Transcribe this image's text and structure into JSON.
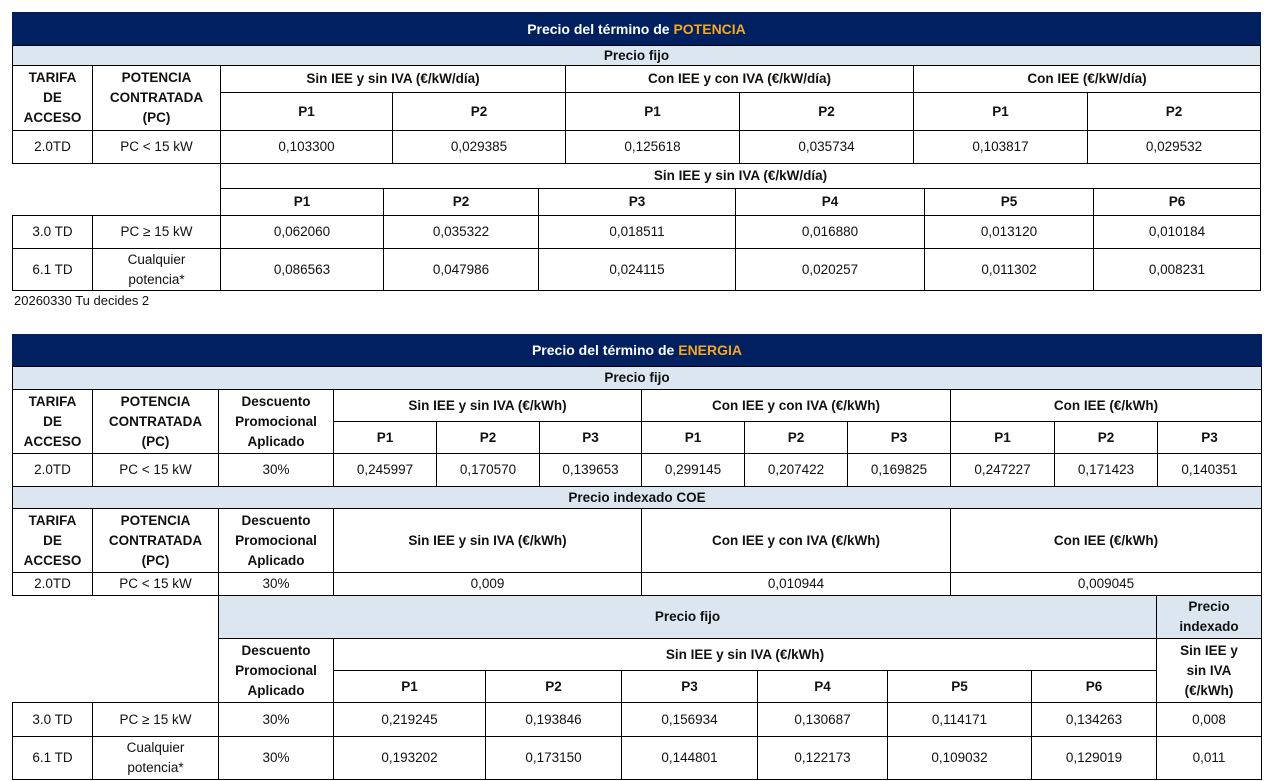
{
  "potencia": {
    "title_prefix": "Precio del término de ",
    "title_highlight": "POTENCIA",
    "band": "Precio fijo",
    "headers": {
      "tarifa": "TARIFA\nDE\nACCESO",
      "potencia": "POTENCIA\nCONTRATADA\n(PC)"
    },
    "groups": [
      "Sin IEE y sin IVA (€/kW/día)",
      "Con IEE y con IVA (€/kW/día)",
      "Con IEE (€/kW/día)"
    ],
    "periods": [
      "P1",
      "P2",
      "P1",
      "P2",
      "P1",
      "P2"
    ],
    "row_2td": {
      "tarifa": "2.0TD",
      "pc": "PC < 15 kW",
      "values": [
        "0,103300",
        "0,029385",
        "0,125618",
        "0,035734",
        "0,103817",
        "0,029532"
      ]
    },
    "section2": {
      "group": "Sin IEE y sin IVA (€/kW/día)",
      "periods": [
        "P1",
        "P2",
        "P3",
        "P4",
        "P5",
        "P6"
      ],
      "rows": [
        {
          "tarifa": "3.0 TD",
          "pc": "PC ≥ 15 kW",
          "values": [
            "0,062060",
            "0,035322",
            "0,018511",
            "0,016880",
            "0,013120",
            "0,010184"
          ]
        },
        {
          "tarifa": "6.1 TD",
          "pc": "Cualquier\npotencia*",
          "values": [
            "0,086563",
            "0,047986",
            "0,024115",
            "0,020257",
            "0,011302",
            "0,008231"
          ]
        }
      ]
    }
  },
  "footnote": "20260330 Tu decides 2",
  "energia": {
    "title_prefix": "Precio del término de ",
    "title_highlight": "ENERGIA",
    "band_fijo": "Precio fijo",
    "headers": {
      "tarifa": "TARIFA\nDE\nACCESO",
      "potencia": "POTENCIA\nCONTRATADA\n(PC)",
      "descuento": "Descuento\nPromocional\nAplicado"
    },
    "groups": [
      "Sin IEE y sin IVA (€/kWh)",
      "Con IEE y con IVA (€/kWh)",
      "Con IEE (€/kWh)"
    ],
    "periods": [
      "P1",
      "P2",
      "P3",
      "P1",
      "P2",
      "P3",
      "P1",
      "P2",
      "P3"
    ],
    "row_2td": {
      "tarifa": "2.0TD",
      "pc": "PC < 15 kW",
      "descuento": "30%",
      "values": [
        "0,245997",
        "0,170570",
        "0,139653",
        "0,299145",
        "0,207422",
        "0,169825",
        "0,247227",
        "0,171423",
        "0,140351"
      ]
    },
    "band_indexado": "Precio indexado COE",
    "indexado_row": {
      "tarifa": "2.0TD",
      "pc": "PC < 15 kW",
      "descuento": "30%",
      "values": [
        "0,009",
        "0,010944",
        "0,009045"
      ]
    },
    "section3": {
      "band_fijo": "Precio fijo",
      "band_indexado": "Precio\nindexado",
      "descuento": "Descuento\nPromocional\nAplicado",
      "group": "Sin IEE y sin IVA (€/kWh)",
      "indexado_group": "Sin IEE y\nsin IVA\n(€/kWh)",
      "periods": [
        "P1",
        "P2",
        "P3",
        "P4",
        "P5",
        "P6"
      ],
      "rows": [
        {
          "tarifa": "3.0 TD",
          "pc": "PC ≥ 15 kW",
          "descuento": "30%",
          "values": [
            "0,219245",
            "0,193846",
            "0,156934",
            "0,130687",
            "0,114171",
            "0,134263"
          ],
          "indexado": "0,008"
        },
        {
          "tarifa": "6.1 TD",
          "pc": "Cualquier\npotencia*",
          "descuento": "30%",
          "values": [
            "0,193202",
            "0,173150",
            "0,144801",
            "0,122173",
            "0,109032",
            "0,129019"
          ],
          "indexado": "0,011"
        }
      ]
    }
  }
}
